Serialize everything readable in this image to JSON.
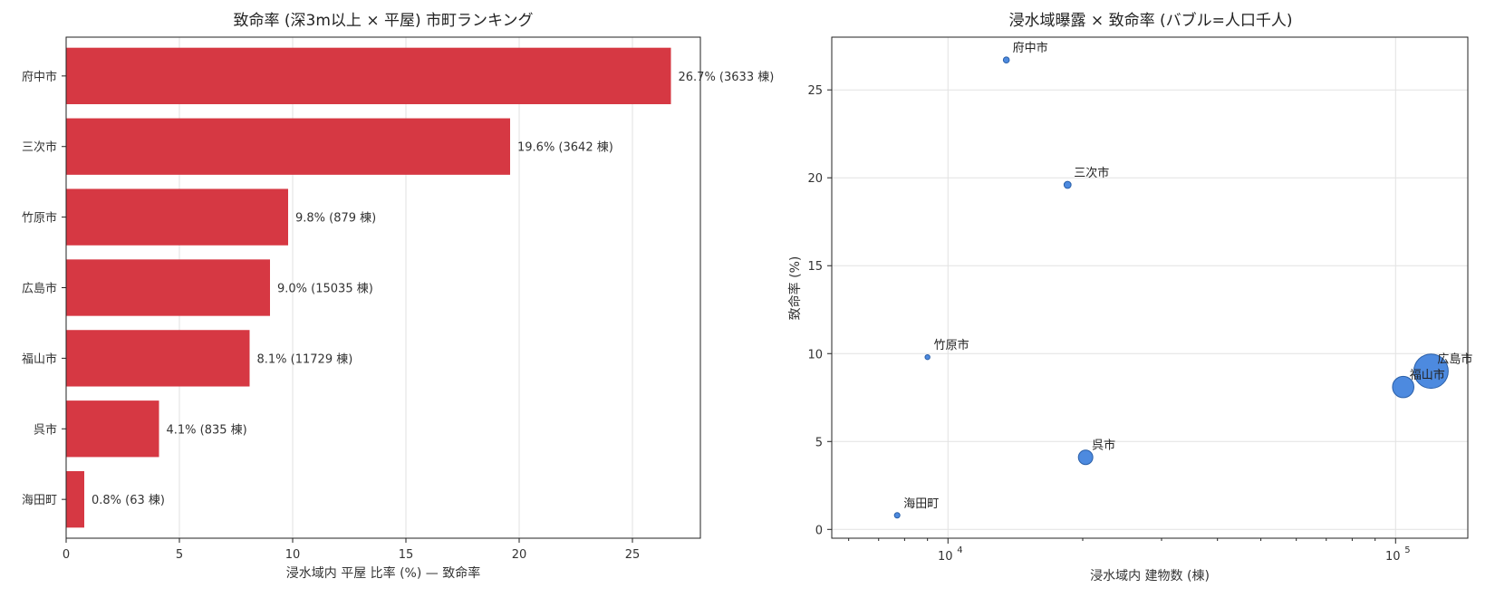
{
  "chart_data": [
    {
      "type": "bar",
      "orientation": "horizontal",
      "title": "致命率 (深3m以上 × 平屋) 市町ランキング",
      "xlabel": "浸水域内 平屋 比率 (%) — 致命率",
      "ylabel": "",
      "xlim": [
        0,
        28
      ],
      "xticks": [
        0,
        5,
        10,
        15,
        20,
        25
      ],
      "grid": true,
      "color": "#d63843",
      "categories": [
        "府中市",
        "三次市",
        "竹原市",
        "広島市",
        "福山市",
        "呉市",
        "海田町"
      ],
      "values": [
        26.7,
        19.6,
        9.8,
        9.0,
        8.1,
        4.1,
        0.8
      ],
      "data_labels": [
        "26.7% (3633 棟)",
        "19.6% (3642 棟)",
        "9.8% (879 棟)",
        "9.0% (15035 棟)",
        "8.1% (11729 棟)",
        "4.1% (835 棟)",
        "0.8% (63 棟)"
      ]
    },
    {
      "type": "scatter",
      "title": "浸水域曝露 × 致命率 (バブル=人口千人)",
      "xlabel": "浸水域内 建物数 (棟)",
      "ylabel": "致命率 (%)",
      "xscale": "log",
      "xlim": [
        5500,
        145000
      ],
      "ylim": [
        -0.5,
        28
      ],
      "xticks": [
        10000,
        100000
      ],
      "xtick_labels": [
        "10",
        "10"
      ],
      "xtick_exponents": [
        "4",
        "5"
      ],
      "yticks": [
        0,
        5,
        10,
        15,
        20,
        25
      ],
      "grid": true,
      "color": "#3a7ddb",
      "points": [
        {
          "label": "府中市",
          "x": 13500,
          "y": 26.7,
          "size": 36
        },
        {
          "label": "三次市",
          "x": 18500,
          "y": 19.6,
          "size": 50
        },
        {
          "label": "竹原市",
          "x": 9000,
          "y": 9.8,
          "size": 24
        },
        {
          "label": "広島市",
          "x": 120000,
          "y": 9.0,
          "size": 1190
        },
        {
          "label": "福山市",
          "x": 104000,
          "y": 8.1,
          "size": 460
        },
        {
          "label": "呉市",
          "x": 20300,
          "y": 4.1,
          "size": 210
        },
        {
          "label": "海田町",
          "x": 7700,
          "y": 0.8,
          "size": 30
        }
      ]
    }
  ]
}
